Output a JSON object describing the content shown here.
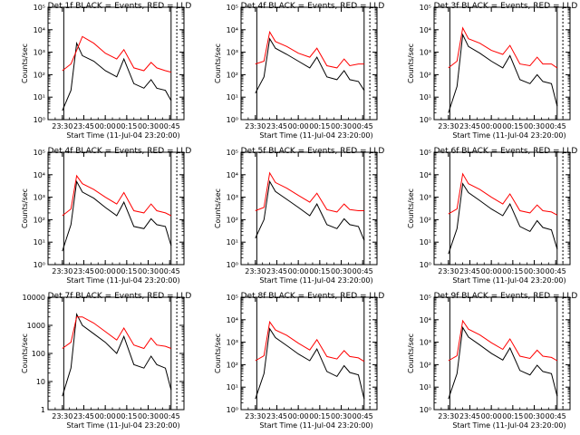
{
  "colors": {
    "events": "#000000",
    "lld": "#ff0000",
    "axis": "#000000",
    "background": "#ffffff"
  },
  "panels": [
    {
      "title": "Det 1f BLACK = Events, RED = LLD",
      "ylabel": "Counts/sec",
      "xlabel": "Start Time (11-Jul-04 23:20:00)",
      "yticks": [
        "10⁰",
        "10¹",
        "10²",
        "10³",
        "10⁴",
        "10⁵"
      ],
      "xticks": [
        "23:30",
        "23:45",
        "00:00",
        "00:15",
        "00:30",
        "00:45"
      ]
    },
    {
      "title": "Det 4f BLACK = Events, RED = LLD",
      "ylabel": "Counts/sec",
      "xlabel": "Start Time (11-Jul-04 23:20:00)",
      "yticks": [
        "10⁰",
        "10¹",
        "10²",
        "10³",
        "10⁴",
        "10⁵"
      ],
      "xticks": [
        "23:30",
        "23:45",
        "00:00",
        "00:15",
        "00:30",
        "00:45"
      ]
    },
    {
      "title": "Det 3f BLACK = Events, RED = LLD",
      "ylabel": "Counts/sec",
      "xlabel": "Start Time (11-Jul-04 23:20:00)",
      "yticks": [
        "10⁰",
        "10¹",
        "10²",
        "10³",
        "10⁴",
        "10⁵"
      ],
      "xticks": [
        "23:30",
        "23:45",
        "00:00",
        "00:15",
        "00:30",
        "00:45"
      ]
    },
    {
      "title": "Det 4f BLACK = Events, RED = LLD",
      "ylabel": "Counts/sec",
      "xlabel": "Start Time (11-Jul-04 23:20:00)",
      "yticks": [
        "10⁰",
        "10¹",
        "10²",
        "10³",
        "10⁴",
        "10⁵"
      ],
      "xticks": [
        "23:30",
        "23:45",
        "00:00",
        "00:15",
        "00:30",
        "00:45"
      ]
    },
    {
      "title": "Det 5f BLACK = Events, RED = LLD",
      "ylabel": "Counts/sec",
      "xlabel": "Start Time (11-Jul-04 23:20:00)",
      "yticks": [
        "10⁰",
        "10¹",
        "10²",
        "10³",
        "10⁴",
        "10⁵"
      ],
      "xticks": [
        "23:30",
        "23:45",
        "00:00",
        "00:15",
        "00:30",
        "00:45"
      ]
    },
    {
      "title": "Det 6f BLACK = Events, RED = LLD",
      "ylabel": "Counts/sec",
      "xlabel": "Start Time (11-Jul-04 23:20:00)",
      "yticks": [
        "10⁰",
        "10¹",
        "10²",
        "10³",
        "10⁴",
        "10⁵"
      ],
      "xticks": [
        "23:30",
        "23:45",
        "00:00",
        "00:15",
        "00:30",
        "00:45"
      ]
    },
    {
      "title": "Det 7f BLACK = Events, RED = LLD",
      "ylabel": "Counts/sec",
      "xlabel": "Start Time (11-Jul-04 23:20:00)",
      "yticks": [
        "1",
        "10",
        "100",
        "1000",
        "10000"
      ],
      "xticks": [
        "23:30",
        "23:45",
        "00:00",
        "00:15",
        "00:30",
        "00:45"
      ]
    },
    {
      "title": "Det 8f BLACK = Events, RED = LLD",
      "ylabel": "Counts/sec",
      "xlabel": "Start Time (11-Jul-04 23:20:00)",
      "yticks": [
        "10⁰",
        "10¹",
        "10²",
        "10³",
        "10⁴",
        "10⁵"
      ],
      "xticks": [
        "23:30",
        "23:45",
        "00:00",
        "00:15",
        "00:30",
        "00:45"
      ]
    },
    {
      "title": "Det 9f BLACK = Events, RED = LLD",
      "ylabel": "Counts/sec",
      "xlabel": "Start Time (11-Jul-04 23:20:00)",
      "yticks": [
        "10⁰",
        "10¹",
        "10²",
        "10³",
        "10⁴",
        "10⁵"
      ],
      "xticks": [
        "23:30",
        "23:45",
        "00:00",
        "00:15",
        "00:30",
        "00:45"
      ]
    }
  ],
  "chart_data": [
    {
      "type": "line",
      "title": "Det 1f BLACK = Events, RED = LLD",
      "xlabel": "Start Time (11-Jul-04 23:20:00)",
      "ylabel": "Counts/sec",
      "x_range": [
        "23:20",
        "00:55"
      ],
      "ylim": [
        1,
        100000
      ],
      "y_scale": "log",
      "grid": false,
      "x": [
        "23:30",
        "23:36",
        "23:40",
        "23:44",
        "23:52",
        "00:00",
        "00:08",
        "00:13",
        "00:20",
        "00:27",
        "00:32",
        "00:36",
        "00:42",
        "00:46"
      ],
      "series": [
        {
          "name": "Events",
          "values": [
            2.5,
            20,
            2500,
            700,
            400,
            150,
            80,
            500,
            40,
            25,
            60,
            25,
            20,
            7
          ]
        },
        {
          "name": "LLD",
          "values": [
            150,
            300,
            1200,
            5000,
            2500,
            900,
            500,
            1300,
            200,
            150,
            350,
            200,
            150,
            130
          ]
        }
      ]
    },
    {
      "type": "line",
      "title": "Det 4f BLACK = Events, RED = LLD",
      "xlabel": "Start Time (11-Jul-04 23:20:00)",
      "ylabel": "Counts/sec",
      "x_range": [
        "23:20",
        "00:55"
      ],
      "ylim": [
        1,
        100000
      ],
      "y_scale": "log",
      "grid": false,
      "x": [
        "23:30",
        "23:36",
        "23:40",
        "23:44",
        "23:52",
        "00:00",
        "00:08",
        "00:13",
        "00:20",
        "00:27",
        "00:32",
        "00:36",
        "00:42",
        "00:46"
      ],
      "series": [
        {
          "name": "Events",
          "values": [
            15,
            80,
            4000,
            1500,
            800,
            400,
            200,
            600,
            80,
            60,
            150,
            60,
            50,
            20
          ]
        },
        {
          "name": "LLD",
          "values": [
            300,
            400,
            8000,
            3000,
            1800,
            900,
            600,
            1500,
            250,
            200,
            500,
            250,
            300,
            300
          ]
        }
      ]
    },
    {
      "type": "line",
      "title": "Det 3f BLACK = Events, RED = LLD",
      "xlabel": "Start Time (11-Jul-04 23:20:00)",
      "ylabel": "Counts/sec",
      "x_range": [
        "23:20",
        "00:55"
      ],
      "ylim": [
        1,
        100000
      ],
      "y_scale": "log",
      "grid": false,
      "x": [
        "23:30",
        "23:36",
        "23:40",
        "23:44",
        "23:52",
        "00:00",
        "00:08",
        "00:13",
        "00:20",
        "00:27",
        "00:32",
        "00:36",
        "00:42",
        "00:46"
      ],
      "series": [
        {
          "name": "Events",
          "values": [
            2,
            30,
            6000,
            1800,
            900,
            400,
            200,
            700,
            60,
            40,
            100,
            50,
            40,
            4
          ]
        },
        {
          "name": "LLD",
          "values": [
            200,
            400,
            12000,
            4000,
            2500,
            1200,
            800,
            2000,
            300,
            250,
            600,
            300,
            300,
            200
          ]
        }
      ]
    },
    {
      "type": "line",
      "title": "Det 4f BLACK = Events, RED = LLD",
      "xlabel": "Start Time (11-Jul-04 23:20:00)",
      "ylabel": "Counts/sec",
      "x_range": [
        "23:20",
        "00:55"
      ],
      "ylim": [
        1,
        100000
      ],
      "y_scale": "log",
      "grid": false,
      "x": [
        "23:30",
        "23:36",
        "23:40",
        "23:44",
        "23:52",
        "00:00",
        "00:08",
        "00:13",
        "00:20",
        "00:27",
        "00:32",
        "00:36",
        "00:42",
        "00:46"
      ],
      "series": [
        {
          "name": "Events",
          "values": [
            4,
            60,
            5000,
            1700,
            900,
            350,
            150,
            600,
            50,
            40,
            110,
            60,
            50,
            7
          ]
        },
        {
          "name": "LLD",
          "values": [
            150,
            300,
            9000,
            4000,
            2200,
            1000,
            500,
            1600,
            250,
            200,
            500,
            250,
            200,
            150
          ]
        }
      ]
    },
    {
      "type": "line",
      "title": "Det 5f BLACK = Events, RED = LLD",
      "xlabel": "Start Time (11-Jul-04 23:20:00)",
      "ylabel": "Counts/sec",
      "x_range": [
        "23:20",
        "00:55"
      ],
      "ylim": [
        1,
        100000
      ],
      "y_scale": "log",
      "grid": false,
      "x": [
        "23:30",
        "23:36",
        "23:40",
        "23:44",
        "23:52",
        "00:00",
        "00:08",
        "00:13",
        "00:20",
        "00:27",
        "00:32",
        "00:36",
        "00:42",
        "00:46"
      ],
      "series": [
        {
          "name": "Events",
          "values": [
            15,
            100,
            5000,
            1800,
            800,
            350,
            150,
            500,
            60,
            40,
            110,
            60,
            50,
            12
          ]
        },
        {
          "name": "LLD",
          "values": [
            250,
            350,
            12000,
            4500,
            2500,
            1200,
            600,
            1500,
            280,
            220,
            500,
            280,
            250,
            250
          ]
        }
      ]
    },
    {
      "type": "line",
      "title": "Det 6f BLACK = Events, RED = LLD",
      "xlabel": "Start Time (11-Jul-04 23:20:00)",
      "ylabel": "Counts/sec",
      "x_range": [
        "23:20",
        "00:55"
      ],
      "ylim": [
        1,
        100000
      ],
      "y_scale": "log",
      "grid": false,
      "x": [
        "23:30",
        "23:36",
        "23:40",
        "23:44",
        "23:52",
        "00:00",
        "00:08",
        "00:13",
        "00:20",
        "00:27",
        "00:32",
        "00:36",
        "00:42",
        "00:46"
      ],
      "series": [
        {
          "name": "Events",
          "values": [
            3,
            40,
            4000,
            1600,
            700,
            300,
            150,
            500,
            50,
            30,
            90,
            45,
            35,
            5
          ]
        },
        {
          "name": "LLD",
          "values": [
            180,
            300,
            11000,
            4000,
            2200,
            1000,
            500,
            1400,
            250,
            200,
            450,
            250,
            220,
            160
          ]
        }
      ]
    },
    {
      "type": "line",
      "title": "Det 7f BLACK = Events, RED = LLD",
      "xlabel": "Start Time (11-Jul-04 23:20:00)",
      "ylabel": "Counts/sec",
      "x_range": [
        "23:20",
        "00:55"
      ],
      "ylim": [
        1,
        10000
      ],
      "y_scale": "log",
      "grid": false,
      "x": [
        "23:30",
        "23:36",
        "23:40",
        "23:44",
        "23:52",
        "00:00",
        "00:08",
        "00:13",
        "00:20",
        "00:27",
        "00:32",
        "00:36",
        "00:42",
        "00:46"
      ],
      "series": [
        {
          "name": "Events",
          "values": [
            3,
            30,
            2500,
            1000,
            500,
            250,
            100,
            400,
            40,
            30,
            80,
            40,
            30,
            5
          ]
        },
        {
          "name": "LLD",
          "values": [
            150,
            250,
            2000,
            2000,
            1200,
            600,
            300,
            800,
            200,
            150,
            350,
            200,
            180,
            150
          ]
        }
      ]
    },
    {
      "type": "line",
      "title": "Det 8f BLACK = Events, RED = LLD",
      "xlabel": "Start Time (11-Jul-04 23:20:00)",
      "ylabel": "Counts/sec",
      "x_range": [
        "23:20",
        "00:55"
      ],
      "ylim": [
        1,
        100000
      ],
      "y_scale": "log",
      "grid": false,
      "x": [
        "23:30",
        "23:36",
        "23:40",
        "23:44",
        "23:52",
        "00:00",
        "00:08",
        "00:13",
        "00:20",
        "00:27",
        "00:32",
        "00:36",
        "00:42",
        "00:46"
      ],
      "series": [
        {
          "name": "Events",
          "values": [
            3,
            40,
            4000,
            1600,
            700,
            300,
            150,
            500,
            50,
            30,
            90,
            45,
            35,
            3
          ]
        },
        {
          "name": "LLD",
          "values": [
            150,
            250,
            8000,
            3500,
            2000,
            900,
            450,
            1300,
            230,
            180,
            420,
            230,
            200,
            140
          ]
        }
      ]
    },
    {
      "type": "line",
      "title": "Det 9f BLACK = Events, RED = LLD",
      "xlabel": "Start Time (11-Jul-04 23:20:00)",
      "ylabel": "Counts/sec",
      "x_range": [
        "23:20",
        "00:55"
      ],
      "ylim": [
        1,
        100000
      ],
      "y_scale": "log",
      "grid": false,
      "x": [
        "23:30",
        "23:36",
        "23:40",
        "23:44",
        "23:52",
        "00:00",
        "00:08",
        "00:13",
        "00:20",
        "00:27",
        "00:32",
        "00:36",
        "00:42",
        "00:46"
      ],
      "series": [
        {
          "name": "Events",
          "values": [
            3,
            40,
            4500,
            1700,
            750,
            320,
            160,
            550,
            55,
            35,
            95,
            50,
            40,
            4
          ]
        },
        {
          "name": "LLD",
          "values": [
            150,
            250,
            9000,
            3800,
            2100,
            950,
            480,
            1400,
            240,
            190,
            440,
            240,
            210,
            150
          ]
        }
      ]
    }
  ]
}
